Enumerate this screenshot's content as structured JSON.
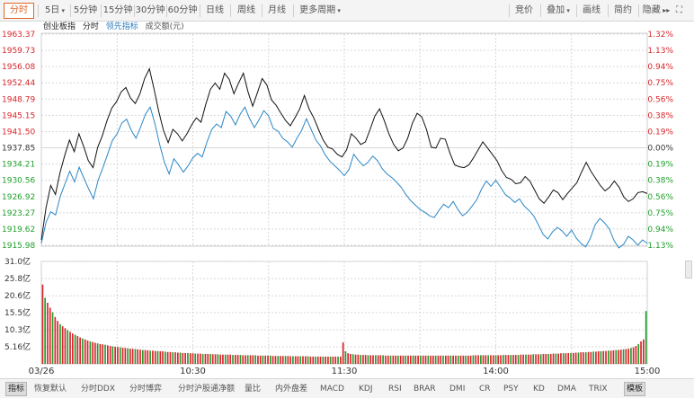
{
  "toolbar": {
    "tabs": [
      "分时",
      "5日",
      "5分钟",
      "15分钟",
      "30分钟",
      "60分钟",
      "日线",
      "周线",
      "月线",
      "更多周期"
    ],
    "right": [
      "竞价",
      "叠加",
      "画线",
      "简约",
      "隐藏"
    ]
  },
  "legend": {
    "index_name": "创业板指",
    "fenshi": "分时",
    "leading": "领先指标",
    "volume": "成交额(元)"
  },
  "bottom": {
    "items": [
      "指标",
      "恢复默认",
      "分时DDX",
      "分时博弈",
      "分时沪股通净额",
      "量比",
      "内外盘差",
      "MACD",
      "KDJ",
      "RSI",
      "BRAR",
      "DMI",
      "CR",
      "PSY",
      "KD",
      "DMA",
      "TRIX",
      "模板"
    ]
  },
  "colors": {
    "price_line": "#111111",
    "leading_line": "#2a86c6",
    "up": "#d9252b",
    "down": "#1f9f2b",
    "grid": "#d7d7d7",
    "accent": "#e0672b"
  },
  "chart_data": {
    "type": "line",
    "base_price": 1937.85,
    "y_left_labels": [
      "1963.37",
      "1959.73",
      "1956.08",
      "1952.44",
      "1948.79",
      "1945.15",
      "1941.50",
      "1937.85",
      "1934.21",
      "1930.56",
      "1926.92",
      "1923.27",
      "1919.62",
      "1915.98"
    ],
    "y_right_labels": [
      "1.32%",
      "1.13%",
      "0.94%",
      "0.75%",
      "0.56%",
      "0.38%",
      "0.19%",
      "0.00%",
      "0.19%",
      "0.38%",
      "0.56%",
      "0.75%",
      "0.94%",
      "1.13%"
    ],
    "ylim": [
      1915.98,
      1963.37
    ],
    "x_labels": [
      "03/26",
      "10:30",
      "11:30",
      "14:00",
      "15:00"
    ],
    "minutes": 240,
    "series": [
      {
        "values": [
          1916.4,
          1921.2,
          1923.5,
          1922.8,
          1927.0,
          1929.8,
          1932.6,
          1930.2,
          1933.5,
          1931.0,
          1928.6,
          1926.4,
          1930.6,
          1933.4,
          1936.4,
          1939.5,
          1941.0,
          1943.4,
          1944.3,
          1941.8,
          1940.0,
          1942.6,
          1945.4,
          1947.0,
          1943.2,
          1938.6,
          1934.6,
          1932.0,
          1935.4,
          1934.0,
          1932.4,
          1933.8,
          1935.6,
          1936.6,
          1935.8,
          1939.2,
          1942.0,
          1943.2,
          1942.4,
          1946.0,
          1945.0,
          1943.0,
          1945.4,
          1947.0,
          1944.4,
          1942.4,
          1944.2,
          1946.2,
          1945.0,
          1942.2,
          1941.6,
          1940.0,
          1939.2,
          1938.0,
          1940.0,
          1941.8,
          1944.4,
          1942.0,
          1939.6,
          1938.2,
          1936.2,
          1934.8,
          1933.8,
          1932.8,
          1931.6,
          1933.0,
          1936.4,
          1935.0,
          1933.8,
          1934.6,
          1936.0,
          1935.0,
          1933.2,
          1932.0,
          1931.2,
          1930.2,
          1929.0,
          1927.4,
          1926.0,
          1925.0,
          1924.0,
          1923.4,
          1922.6,
          1922.2,
          1923.8,
          1925.2,
          1924.4,
          1925.8,
          1924.0,
          1922.6,
          1923.4,
          1924.8,
          1926.2,
          1928.6,
          1930.4,
          1929.2,
          1930.6,
          1929.0,
          1927.4,
          1926.6,
          1925.6,
          1926.4,
          1924.8,
          1923.8,
          1922.6,
          1920.6,
          1918.4,
          1917.4,
          1919.0,
          1920.0,
          1919.2,
          1918.0,
          1919.4,
          1917.6,
          1916.4,
          1915.6,
          1917.6,
          1920.6,
          1922.0,
          1921.0,
          1919.6,
          1917.0,
          1915.4,
          1916.2,
          1918.0,
          1917.2,
          1916.0,
          1917.2,
          1916.4
        ]
      },
      {
        "values": [
          1917.2,
          1924.4,
          1929.4,
          1927.4,
          1932.4,
          1936.2,
          1939.6,
          1937.0,
          1941.0,
          1938.2,
          1935.0,
          1933.4,
          1938.0,
          1940.6,
          1944.0,
          1946.8,
          1948.2,
          1950.4,
          1951.4,
          1949.0,
          1947.8,
          1950.0,
          1953.4,
          1955.6,
          1951.0,
          1946.0,
          1941.8,
          1939.0,
          1942.0,
          1941.0,
          1939.4,
          1941.0,
          1943.0,
          1944.6,
          1943.6,
          1947.6,
          1951.0,
          1952.4,
          1951.0,
          1954.6,
          1953.2,
          1950.0,
          1952.4,
          1954.6,
          1950.4,
          1947.2,
          1950.2,
          1953.4,
          1952.0,
          1948.6,
          1947.4,
          1945.6,
          1944.0,
          1942.8,
          1944.6,
          1946.6,
          1949.6,
          1946.6,
          1944.6,
          1942.0,
          1939.6,
          1938.0,
          1937.6,
          1936.4,
          1935.8,
          1937.4,
          1941.0,
          1940.0,
          1938.6,
          1939.2,
          1942.0,
          1945.0,
          1946.6,
          1944.0,
          1941.0,
          1938.6,
          1937.2,
          1937.8,
          1940.0,
          1943.4,
          1945.6,
          1944.8,
          1942.0,
          1938.0,
          1937.8,
          1940.0,
          1939.8,
          1936.6,
          1934.0,
          1933.6,
          1933.4,
          1934.0,
          1935.6,
          1937.4,
          1939.2,
          1937.8,
          1936.4,
          1935.0,
          1932.8,
          1931.2,
          1930.8,
          1929.8,
          1930.0,
          1931.4,
          1930.4,
          1928.4,
          1926.4,
          1925.4,
          1926.8,
          1928.4,
          1927.8,
          1926.2,
          1927.6,
          1928.8,
          1930.0,
          1932.4,
          1934.6,
          1932.6,
          1931.0,
          1929.4,
          1928.2,
          1929.0,
          1930.4,
          1929.0,
          1926.8,
          1925.8,
          1926.4,
          1927.8,
          1928.0,
          1927.6
        ]
      }
    ],
    "volume": {
      "y_labels": [
        "31.0亿",
        "25.8亿",
        "20.6亿",
        "15.5亿",
        "10.3亿",
        "5.16亿"
      ],
      "ylim": [
        0,
        31.0
      ],
      "values_yi": [
        24.0,
        20.0,
        18.5,
        17.0,
        15.6,
        14.2,
        13.0,
        12.0,
        11.4,
        10.8,
        10.2,
        9.7,
        9.2,
        8.8,
        8.4,
        8.0,
        7.7,
        7.4,
        7.1,
        6.8,
        6.6,
        6.4,
        6.2,
        6.0,
        5.9,
        5.8,
        5.6,
        5.4,
        5.3,
        5.2,
        5.1,
        5.0,
        4.9,
        4.8,
        4.7,
        4.6,
        4.6,
        4.5,
        4.4,
        4.3,
        4.2,
        4.2,
        4.1,
        4.0,
        4.0,
        3.9,
        3.9,
        3.8,
        3.8,
        3.7,
        3.6,
        3.6,
        3.5,
        3.5,
        3.4,
        3.4,
        3.3,
        3.3,
        3.3,
        3.2,
        3.2,
        3.1,
        3.1,
        3.1,
        3.0,
        3.0,
        3.0,
        3.0,
        2.9,
        2.9,
        2.9,
        2.8,
        2.8,
        2.8,
        2.8,
        2.8,
        2.7,
        2.7,
        2.7,
        2.7,
        2.6,
        2.6,
        2.6,
        2.6,
        2.6,
        2.6,
        2.5,
        2.5,
        2.5,
        2.5,
        2.5,
        2.5,
        2.4,
        2.4,
        2.4,
        2.4,
        2.4,
        2.4,
        2.4,
        2.3,
        2.3,
        2.3,
        2.3,
        2.3,
        2.3,
        2.3,
        2.3,
        2.2,
        2.2,
        2.2,
        2.2,
        2.2,
        2.2,
        2.2,
        2.2,
        2.2,
        2.2,
        2.2,
        2.2,
        2.2,
        6.5,
        3.8,
        3.2,
        3.0,
        2.9,
        2.8,
        2.8,
        2.7,
        2.7,
        2.7,
        2.6,
        2.6,
        2.6,
        2.6,
        2.6,
        2.6,
        2.6,
        2.5,
        2.5,
        2.5,
        2.5,
        2.5,
        2.5,
        2.5,
        2.5,
        2.5,
        2.5,
        2.5,
        2.5,
        2.5,
        2.5,
        2.5,
        2.5,
        2.5,
        2.5,
        2.5,
        2.5,
        2.5,
        2.5,
        2.5,
        2.5,
        2.5,
        2.5,
        2.5,
        2.5,
        2.5,
        2.5,
        2.5,
        2.5,
        2.5,
        2.5,
        2.5,
        2.6,
        2.6,
        2.6,
        2.6,
        2.6,
        2.6,
        2.6,
        2.6,
        2.6,
        2.6,
        2.6,
        2.6,
        2.7,
        2.7,
        2.7,
        2.7,
        2.7,
        2.7,
        2.7,
        2.8,
        2.8,
        2.8,
        2.8,
        2.8,
        2.9,
        2.9,
        2.9,
        2.9,
        3.0,
        3.0,
        3.0,
        3.0,
        3.1,
        3.1,
        3.1,
        3.2,
        3.2,
        3.2,
        3.3,
        3.3,
        3.3,
        3.4,
        3.4,
        3.5,
        3.5,
        3.5,
        3.6,
        3.6,
        3.7,
        3.7,
        3.8,
        3.8,
        3.9,
        3.9,
        4.0,
        4.0,
        4.1,
        4.2,
        4.2,
        4.3,
        4.4,
        4.5,
        4.6,
        4.8,
        5.0,
        5.4,
        6.0,
        6.8,
        7.4,
        16.0
      ]
    }
  }
}
